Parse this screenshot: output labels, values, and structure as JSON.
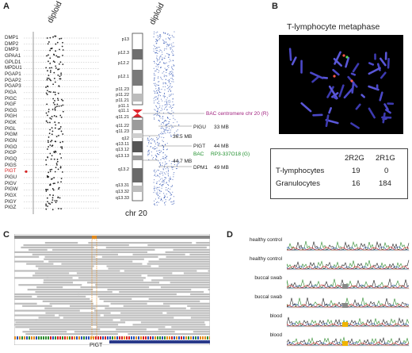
{
  "panel_labels": {
    "a": "A",
    "b": "B",
    "c": "C",
    "d": "D"
  },
  "panel_a": {
    "scatter_header": "diploid",
    "genes": [
      "DMP1",
      "DMP2",
      "DMP3",
      "GPAA1",
      "GPLD1",
      "MPDU1",
      "PGAP1",
      "PGAP2",
      "PGAP3",
      "PIGA",
      "PIGC",
      "PIGF",
      "PIGG",
      "PIGH",
      "PIGK",
      "PIGL",
      "PIGM",
      "PIGN",
      "PIGO",
      "PIGP",
      "PIGQ",
      "PIGS",
      "PIGT",
      "PIGU",
      "PIGV",
      "PIGW",
      "PIGX",
      "PIGY",
      "PIGZ"
    ],
    "highlight_gene": "PIGT",
    "chromosome_label": "chr 20",
    "chrom_header": "diploid",
    "bands": [
      "p13",
      "p12.3",
      "p12.2",
      "p12.1",
      "p11.23",
      "p11.22",
      "p11.21",
      "p11.1",
      "q11.1",
      "q11.21",
      "q11.22",
      "q11.23",
      "q12",
      "q13.11",
      "q13.12",
      "q13.13",
      "q13.2",
      "q13.31",
      "q13.32",
      "q13.33"
    ],
    "annotations": {
      "centromere": "BAC centromere chr 20 (R)",
      "pigu": "PIGU",
      "pigu_mb": "33 MB",
      "mb365": "36.5 MB",
      "pigt": "PIGT",
      "pigt_mb": "44 MB",
      "bac": "BAC",
      "bac_clone": "RP3-337O18 (G)",
      "mb447": "44.7 MB",
      "dpm1": "DPM1",
      "dpm1_mb": "49 MB"
    },
    "colors": {
      "scatter": "#2a4fb0",
      "highlight": "#d62020",
      "centromere": "#e0262f"
    }
  },
  "panel_b": {
    "title": "T-lymphocyte metaphase",
    "table": {
      "headers": [
        "2R2G",
        "2R1G"
      ],
      "rows": [
        {
          "label": "T-lymphocytes",
          "values": [
            "19",
            "0"
          ]
        },
        {
          "label": "Granulocytes",
          "values": [
            "16",
            "184"
          ]
        }
      ]
    }
  },
  "panel_c": {
    "gene_label": "PIGT"
  },
  "panel_d": {
    "samples": [
      "healthy control",
      "healthy control",
      "buccal swab",
      "buccal swab",
      "blood",
      "blood"
    ]
  }
}
